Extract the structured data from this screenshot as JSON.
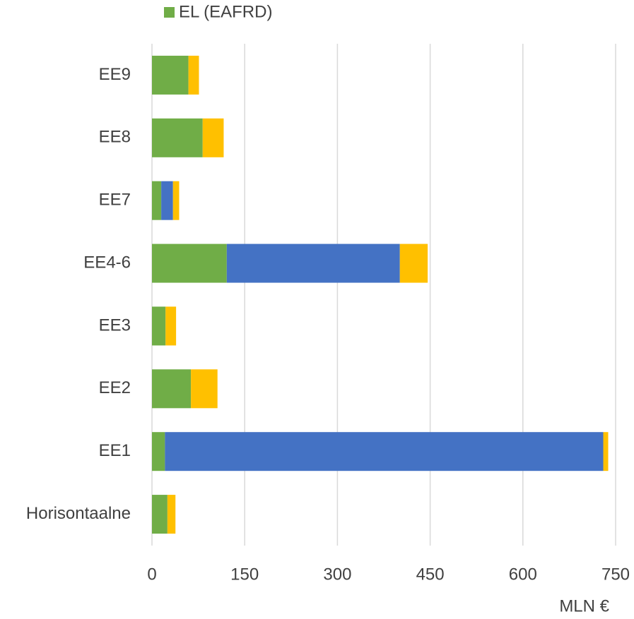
{
  "chart_data": {
    "type": "stacked-barh",
    "categories": [
      "Horisontaalne",
      "EE1",
      "EE2",
      "EE3",
      "EE4-6",
      "EE7",
      "EE8",
      "EE9"
    ],
    "series": [
      {
        "name": "EL (EAFRD)",
        "color": "#70ad47",
        "values": [
          25,
          21,
          63,
          22,
          121,
          15,
          82,
          59
        ]
      },
      {
        "color": "#4472c4",
        "values": [
          0,
          709,
          0,
          0,
          280,
          19,
          0,
          0
        ]
      },
      {
        "color": "#ffc000",
        "values": [
          13,
          8,
          43,
          17,
          45,
          10,
          34,
          17
        ]
      }
    ],
    "xlim": [
      0,
      750
    ],
    "xticks": [
      0,
      150,
      300,
      450,
      600,
      750
    ],
    "xlabel": "MLN €",
    "grid": true
  }
}
